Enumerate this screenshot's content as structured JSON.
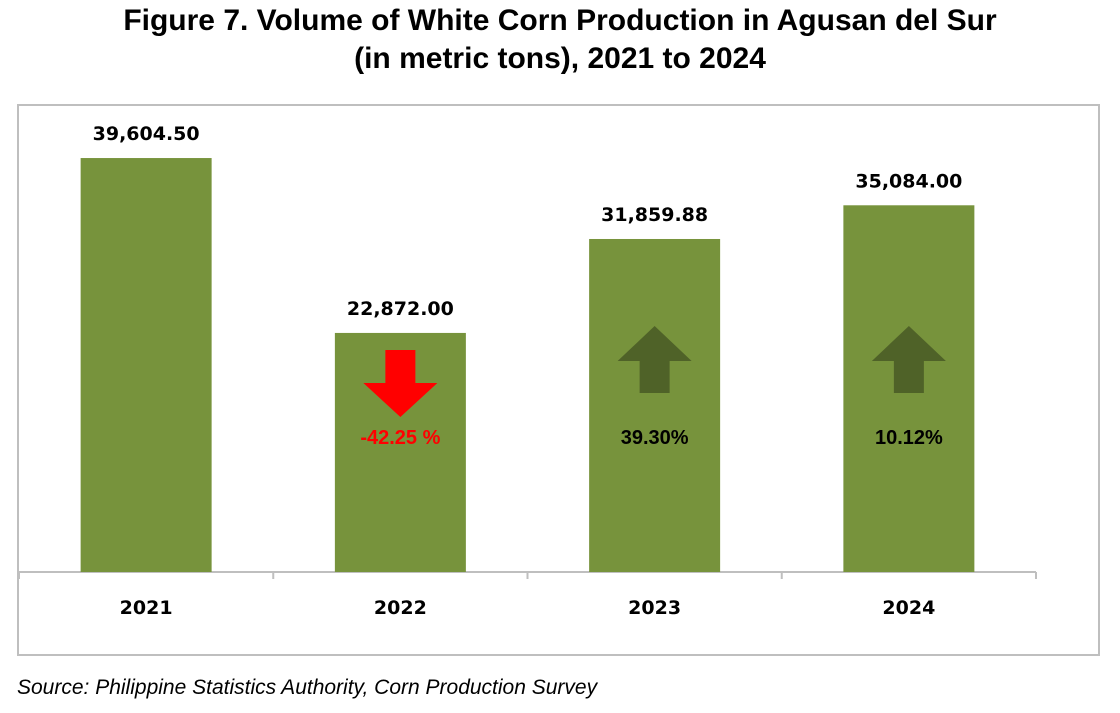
{
  "title": {
    "line1": "Figure 7. Volume of White Corn Production in Agusan del Sur",
    "line2": "(in metric tons), 2021 to 2024"
  },
  "source": "Source: Philippine Statistics Authority, Corn Production Survey",
  "colors": {
    "bar": "#77933c",
    "arrow_up": "#4f6228",
    "arrow_down": "#ff0000",
    "pct_down_text": "#ff0000",
    "pct_up_text": "#000000",
    "axis": "#bfbfbf"
  },
  "chart_data": {
    "type": "bar",
    "title": "Figure 7. Volume of White Corn Production in Agusan del Sur (in metric tons), 2021 to 2024",
    "categories": [
      "2021",
      "2022",
      "2023",
      "2024"
    ],
    "values": [
      39604.5,
      22872.0,
      31859.88,
      35084.0
    ],
    "value_labels": [
      "39,604.50",
      "22,872.00",
      "31,859.88",
      "35,084.00"
    ],
    "ylim": [
      0,
      42000
    ],
    "grid": false,
    "legend": "none",
    "annotations": [
      null,
      {
        "text": "-42.25 %",
        "direction": "down"
      },
      {
        "text": "39.30%",
        "direction": "up"
      },
      {
        "text": "10.12%",
        "direction": "up"
      }
    ]
  }
}
